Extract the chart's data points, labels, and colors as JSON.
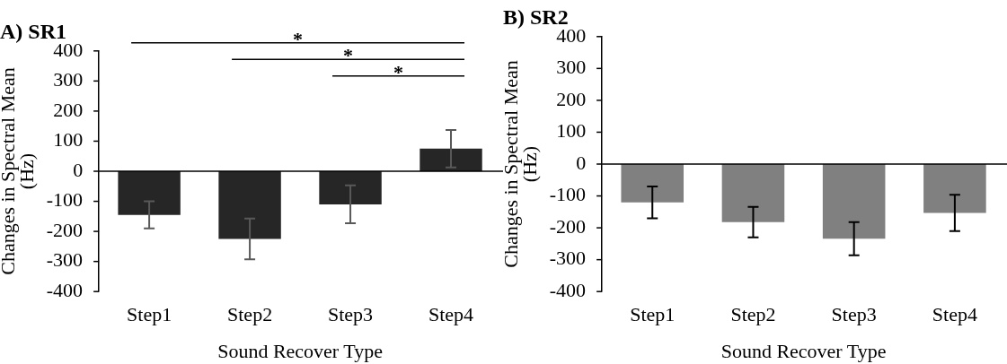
{
  "chart_data": [
    {
      "type": "bar",
      "title": "A) SR1",
      "xlabel": "Sound Recover Type",
      "ylabel": "Changes in Spectral Mean\n(Hz)",
      "categories": [
        "Step1",
        "Step2",
        "Step3",
        "Step4"
      ],
      "series": [
        {
          "color": "#262626",
          "values": [
            -145,
            -225,
            -110,
            75
          ],
          "errors": [
            45,
            68,
            63,
            62
          ]
        }
      ],
      "ylim": [
        -400,
        400
      ],
      "yticks": [
        -400,
        -300,
        -200,
        -100,
        0,
        100,
        200,
        300,
        400
      ],
      "grid": false,
      "legend": false,
      "annotations": [
        "*",
        "*",
        "*"
      ],
      "ref_lines": [
        {
          "axis": "y",
          "value": 0,
          "color": "#000000"
        }
      ]
    },
    {
      "type": "bar",
      "title": "B) SR2",
      "xlabel": "Sound Recover Type",
      "ylabel": "Changes in Spectral Mean\n(Hz)",
      "categories": [
        "Step1",
        "Step2",
        "Step3",
        "Step4"
      ],
      "series": [
        {
          "color": "#808080",
          "values": [
            -120,
            -182,
            -234,
            -153
          ],
          "errors": [
            50,
            48,
            52,
            57
          ]
        }
      ],
      "ylim": [
        -400,
        400
      ],
      "yticks": [
        -400,
        -300,
        -200,
        -100,
        0,
        100,
        200,
        300,
        400
      ],
      "grid": false,
      "legend": false,
      "ref_lines": [
        {
          "axis": "y",
          "value": 0,
          "color": "#000000"
        }
      ]
    }
  ]
}
